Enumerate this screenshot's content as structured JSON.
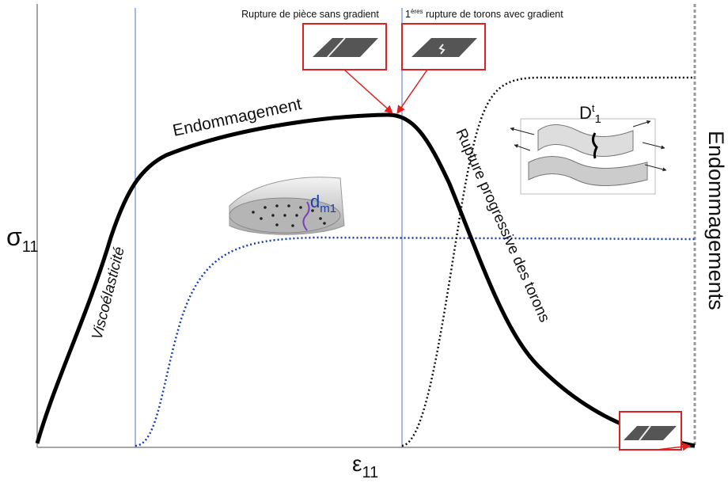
{
  "axes": {
    "y_label": {
      "base": "σ",
      "sub": "11"
    },
    "x_label": {
      "base": "ε",
      "sub": "11"
    },
    "right_label": "Endommagements"
  },
  "annotations": {
    "rupture_sans_gradient": "Rupture de pièce sans gradient",
    "rupture_avec_gradient": {
      "prefix": "1",
      "sup": "ères",
      "text": " rupture de torons avec gradient"
    }
  },
  "phases": [
    "Viscoélasticité",
    "Endommagement",
    "Rupture progressive des torons"
  ],
  "damage_variables": [
    {
      "base": "d",
      "sub": "m1"
    },
    {
      "base": "D",
      "sup": "t",
      "sub": "1"
    }
  ]
}
